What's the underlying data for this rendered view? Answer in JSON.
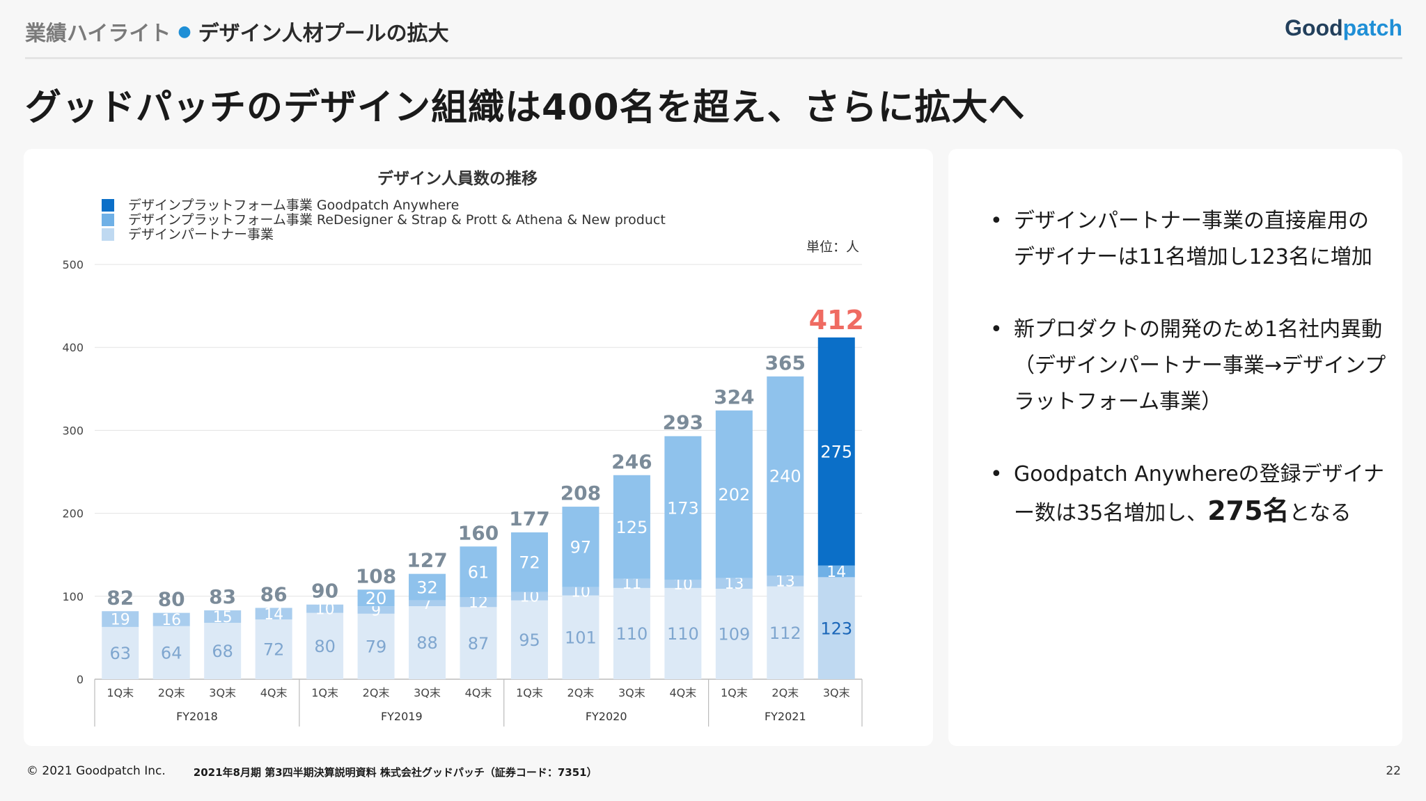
{
  "header": {
    "section": "業績ハイライト",
    "topic": "デザイン人材プールの拡大",
    "logo_a": "Good",
    "logo_b": "patch"
  },
  "title": "グッドパッチのデザイン組織は400名を超え、さらに拡大へ",
  "chart_data": {
    "type": "bar",
    "title": "デザイン人員数の推移",
    "unit_label": "単位：人",
    "xlabel": "",
    "ylabel": "",
    "ylim": [
      0,
      500
    ],
    "yticks": [
      0,
      100,
      200,
      300,
      400,
      500
    ],
    "grid": true,
    "legend_position": "top-left",
    "stacked": true,
    "categories": [
      "1Q末",
      "2Q末",
      "3Q末",
      "4Q末",
      "1Q末",
      "2Q末",
      "3Q末",
      "4Q末",
      "1Q末",
      "2Q末",
      "3Q末",
      "4Q末",
      "1Q末",
      "2Q末",
      "3Q末"
    ],
    "groups": [
      {
        "label": "FY2018",
        "count": 4
      },
      {
        "label": "FY2019",
        "count": 4
      },
      {
        "label": "FY2020",
        "count": 4
      },
      {
        "label": "FY2021",
        "count": 3
      }
    ],
    "series": [
      {
        "name": "デザインパートナー事業",
        "values": [
          63,
          64,
          68,
          72,
          80,
          79,
          88,
          87,
          95,
          101,
          110,
          110,
          109,
          112,
          123
        ]
      },
      {
        "name": "デザインプラットフォーム事業 ReDesigner & Strap & Prott & Athena & New product",
        "values": [
          19,
          16,
          15,
          14,
          10,
          9,
          7,
          12,
          10,
          10,
          11,
          10,
          13,
          13,
          14
        ]
      },
      {
        "name": "デザインプラットフォーム事業 Goodpatch Anywhere",
        "values": [
          0,
          0,
          0,
          0,
          0,
          20,
          32,
          61,
          72,
          97,
          125,
          173,
          202,
          240,
          275
        ]
      }
    ],
    "totals": [
      82,
      80,
      83,
      86,
      90,
      108,
      127,
      160,
      177,
      208,
      246,
      293,
      324,
      365,
      412
    ],
    "colors": {
      "past": [
        "#dce9f6",
        "#a9cdee",
        "#8fc2ec"
      ],
      "current": [
        "#bfd9f1",
        "#6fb0e6",
        "#0b6fc8"
      ],
      "total_text": "#7b8b99",
      "highlight_total": "#ef6b62",
      "inner_label": "#ffffff",
      "bottom_label": "#7fa6cf",
      "bottom_label_current": "#1a66b8"
    }
  },
  "bullets": [
    {
      "text": "デザインパートナー事業の直接雇用のデザイナーは11名増加し123名に増加"
    },
    {
      "text": "新プロダクトの開発のため1名社内異動（デザインパートナー事業→デザインプラットフォーム事業）"
    },
    {
      "text_before": "Goodpatch Anywhereの登録デザイナー数は35名増加し、",
      "emphasis": "275名",
      "text_after": "となる"
    }
  ],
  "footer": {
    "copyright": "© 2021 Goodpatch Inc.",
    "doc": "2021年8月期 第3四半期決算説明資料 株式会社グッドパッチ（証券コード：7351）",
    "page": "22"
  }
}
